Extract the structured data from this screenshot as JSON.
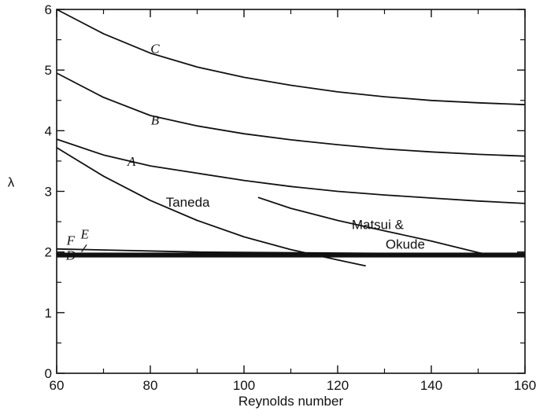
{
  "chart_data": {
    "type": "line",
    "xlabel": "Reynolds number",
    "ylabel": "λ",
    "xlim": [
      60,
      160
    ],
    "ylim": [
      0,
      6
    ],
    "x_ticks": [
      60,
      80,
      100,
      120,
      140,
      160
    ],
    "y_ticks": [
      0,
      1,
      2,
      3,
      4,
      5,
      6
    ],
    "grid": false,
    "series": [
      {
        "name": "C",
        "label_at": [
          81,
          5.28
        ],
        "points": [
          [
            60,
            6.0
          ],
          [
            70,
            5.6
          ],
          [
            80,
            5.28
          ],
          [
            90,
            5.05
          ],
          [
            100,
            4.88
          ],
          [
            110,
            4.75
          ],
          [
            120,
            4.64
          ],
          [
            130,
            4.56
          ],
          [
            140,
            4.5
          ],
          [
            150,
            4.46
          ],
          [
            160,
            4.43
          ]
        ]
      },
      {
        "name": "B",
        "label_at": [
          81,
          4.1
        ],
        "points": [
          [
            60,
            4.95
          ],
          [
            70,
            4.55
          ],
          [
            80,
            4.25
          ],
          [
            90,
            4.08
          ],
          [
            100,
            3.95
          ],
          [
            110,
            3.85
          ],
          [
            120,
            3.77
          ],
          [
            130,
            3.7
          ],
          [
            140,
            3.65
          ],
          [
            150,
            3.61
          ],
          [
            160,
            3.58
          ]
        ]
      },
      {
        "name": "A",
        "label_at": [
          76,
          3.42
        ],
        "points": [
          [
            60,
            3.86
          ],
          [
            70,
            3.6
          ],
          [
            80,
            3.42
          ],
          [
            90,
            3.3
          ],
          [
            100,
            3.18
          ],
          [
            110,
            3.08
          ],
          [
            120,
            3.0
          ],
          [
            130,
            2.94
          ],
          [
            140,
            2.89
          ],
          [
            150,
            2.84
          ],
          [
            160,
            2.8
          ]
        ]
      },
      {
        "name": "Taneda",
        "label_at": [
          88,
          2.75
        ],
        "points": [
          [
            60,
            3.72
          ],
          [
            70,
            3.25
          ],
          [
            80,
            2.85
          ],
          [
            90,
            2.52
          ],
          [
            100,
            2.25
          ],
          [
            110,
            2.04
          ],
          [
            120,
            1.87
          ],
          [
            126,
            1.77
          ]
        ]
      },
      {
        "name": "Matsui & Okude",
        "label_at": [
          123,
          2.38
        ],
        "points": [
          [
            103,
            2.9
          ],
          [
            110,
            2.72
          ],
          [
            120,
            2.52
          ],
          [
            130,
            2.35
          ],
          [
            140,
            2.18
          ],
          [
            150,
            1.99
          ],
          [
            152,
            1.96
          ]
        ]
      },
      {
        "name": "D",
        "label_at": [
          63,
          1.87
        ],
        "points": [
          [
            60,
            1.93
          ],
          [
            160,
            1.93
          ]
        ]
      },
      {
        "name": "E",
        "label_at": [
          66,
          2.22
        ],
        "points": [
          [
            60,
            1.97
          ],
          [
            160,
            1.97
          ]
        ]
      },
      {
        "name": "F",
        "label_at": [
          63,
          2.12
        ],
        "points": [
          [
            60,
            2.05
          ],
          [
            90,
            2.0
          ],
          [
            160,
            1.96
          ]
        ]
      }
    ]
  }
}
